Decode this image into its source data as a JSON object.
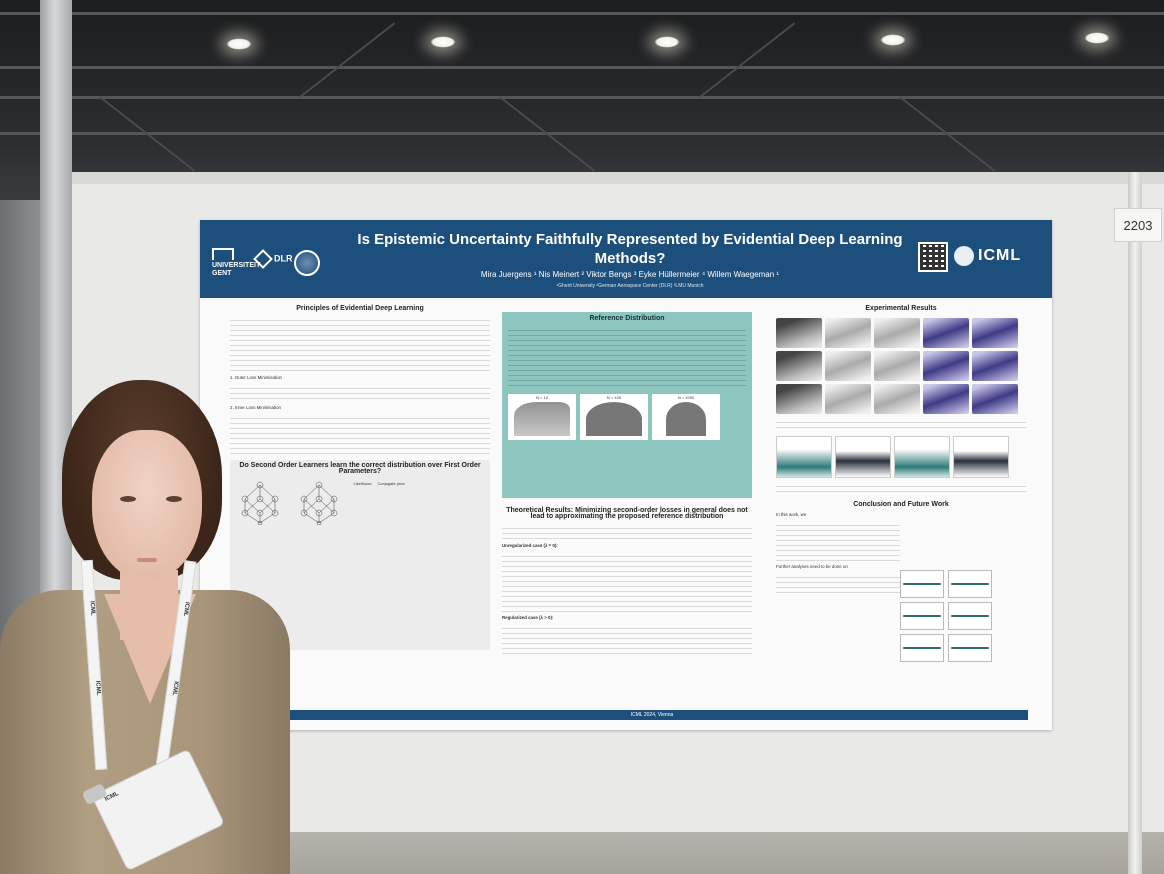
{
  "board": {
    "number": "2203"
  },
  "poster": {
    "title": "Is Epistemic Uncertainty Faithfully Represented by Evidential Deep Learning Methods?",
    "authors": "Mira Juergens ¹   Nis Meinert ²   Viktor Bengs ³   Eyke Hüllermeier ⁴   Willem Waegeman ¹",
    "affiliations": "¹Ghent University    ²German Aerospace Center (DLR)    ³LMU Munich",
    "logos": {
      "university": "UNIVERSITEIT GENT",
      "dlr": "DLR",
      "conference": "ICML"
    },
    "sections": {
      "principles": "Principles of Evidential Deep Learning",
      "outer_loss": "1.  Outer Loss Minimisation",
      "inner_loss": "2.  Inner Loss Minimisation",
      "second_order": "Do Second Order Learners learn the correct distribution over First Order Parameters?",
      "reference": "Reference Distribution",
      "theoretical": "Theoretical Results: Minimizing second-order losses in general does not lead to approximating the proposed reference distribution",
      "unregularized": "Unregularized case (λ = 0):",
      "regularized": "Regularized case (λ > 0):",
      "experimental": "Experimental Results",
      "conclusion": "Conclusion and Future Work",
      "in_this_work": "In this work, we",
      "further": "Further analyses need to be done on"
    },
    "table_headers": {
      "likelihood": "Likelihood",
      "prior": "Conjugate prior"
    },
    "plot_labels": [
      "N = 10",
      "N = 100",
      "N = 1000"
    ],
    "footer": "ICML 2024, Vienna"
  },
  "colors": {
    "poster_header": "#1d4f7c",
    "reference_box": "#8dc5bf",
    "accent_teal": "#2f7b7a"
  },
  "person": {
    "lanyard": "ICML"
  }
}
